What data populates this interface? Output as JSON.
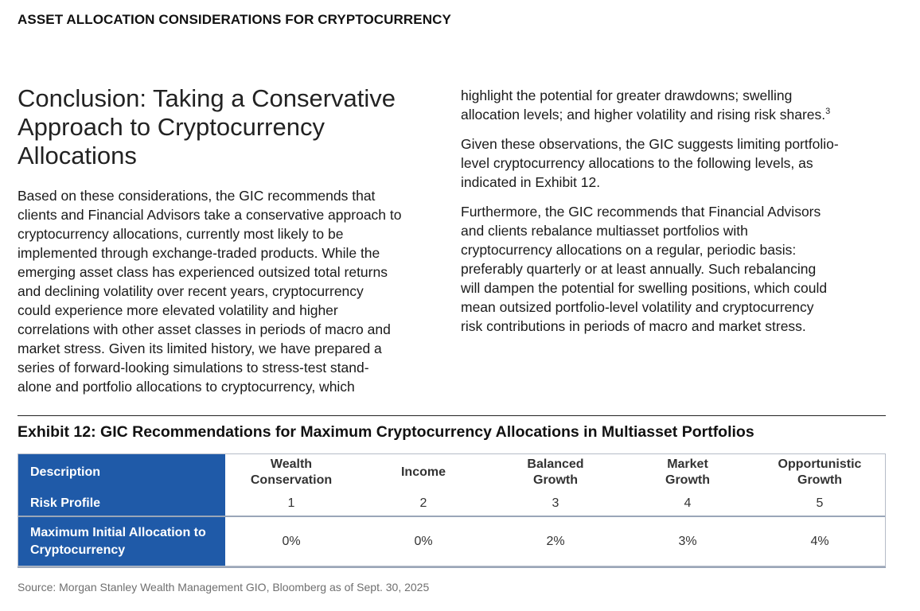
{
  "header": {
    "title": "ASSET ALLOCATION CONSIDERATIONS FOR CRYPTOCURRENCY"
  },
  "section": {
    "heading_lines": [
      "Conclusion: Taking a Conservative",
      "Approach to Cryptocurrency",
      "Allocations"
    ],
    "left_paragraph_lines": [
      "Based on these considerations, the GIC recommends that",
      "clients and Financial Advisors take a conservative approach to",
      "cryptocurrency allocations, currently most likely to be",
      "implemented through exchange-traded products. While the",
      "emerging asset class has experienced outsized total returns",
      "and declining volatility over recent years, cryptocurrency",
      "could experience more elevated volatility and higher",
      "correlations with other asset classes in periods of macro and",
      "market stress. Given its limited history, we have prepared a",
      "series of forward-looking simulations to stress-test stand-",
      "alone and portfolio allocations to cryptocurrency, which"
    ],
    "right_p1_lines": [
      "highlight the potential for greater drawdowns; swelling",
      "allocation levels; and higher volatility and rising risk shares."
    ],
    "right_p1_footnote": "3",
    "right_p2_lines": [
      "Given these observations, the GIC suggests limiting portfolio-",
      "level cryptocurrency allocations to the following levels, as",
      "indicated in Exhibit 12."
    ],
    "right_p3_lines": [
      "Furthermore, the GIC recommends that Financial Advisors",
      "and clients rebalance multiasset portfolios with",
      "cryptocurrency allocations on a regular, periodic basis:",
      "preferably quarterly or at least annually. Such rebalancing",
      "will dampen the potential for swelling positions, which could",
      "mean outsized portfolio-level volatility and cryptocurrency",
      "risk contributions in periods of macro and market stress."
    ]
  },
  "exhibit": {
    "title": "Exhibit 12: GIC Recommendations for Maximum Cryptocurrency Allocations in Multiasset Portfolios",
    "description_label": "Description",
    "risk_profile_label": "Risk Profile",
    "allocation_label_lines": [
      "Maximum Initial Allocation to",
      "Cryptocurrency"
    ],
    "columns": [
      {
        "name_lines": [
          "Wealth",
          "Conservation"
        ],
        "risk_profile": "1",
        "allocation": "0%"
      },
      {
        "name_lines": [
          "Income"
        ],
        "risk_profile": "2",
        "allocation": "0%"
      },
      {
        "name_lines": [
          "Balanced",
          "Growth"
        ],
        "risk_profile": "3",
        "allocation": "2%"
      },
      {
        "name_lines": [
          "Market",
          "Growth"
        ],
        "risk_profile": "4",
        "allocation": "3%"
      },
      {
        "name_lines": [
          "Opportunistic",
          "Growth"
        ],
        "risk_profile": "5",
        "allocation": "4%"
      }
    ],
    "source": "Source: Morgan Stanley Wealth Management GIO, Bloomberg as of Sept. 30, 2025"
  },
  "colors": {
    "table_header_blue": "#1f5aa8",
    "row_border": "#9aa6b8",
    "source_text": "#6f6f6f"
  }
}
